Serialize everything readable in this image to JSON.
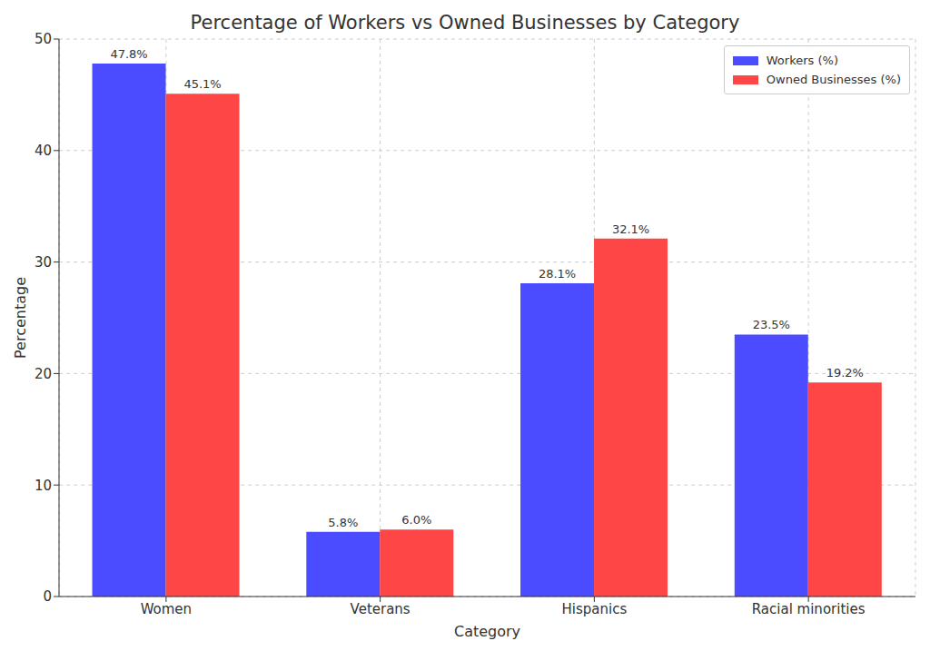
{
  "chart_data": {
    "type": "bar",
    "title": "Percentage of Workers vs Owned Businesses by Category",
    "x_label": "Category",
    "y_label": "Percentage",
    "categories": [
      "Women",
      "Veterans",
      "Hispanics",
      "Racial minorities"
    ],
    "series": [
      {
        "name": "Workers (%)",
        "color": "#4b4bff",
        "values": [
          47.8,
          5.8,
          28.1,
          23.5
        ],
        "value_labels": [
          "47.8%",
          "5.8%",
          "28.1%",
          "23.5%"
        ]
      },
      {
        "name": "Owned Businesses (%)",
        "color": "#ff4646",
        "values": [
          45.1,
          6.0,
          32.1,
          19.2
        ],
        "value_labels": [
          "45.1%",
          "6.0%",
          "32.1%",
          "19.2%"
        ]
      }
    ],
    "ylim": [
      0,
      50
    ],
    "yticks": [
      0,
      10,
      20,
      30,
      40,
      50
    ],
    "grid": true,
    "legend": "upper right",
    "data_labels": true
  }
}
